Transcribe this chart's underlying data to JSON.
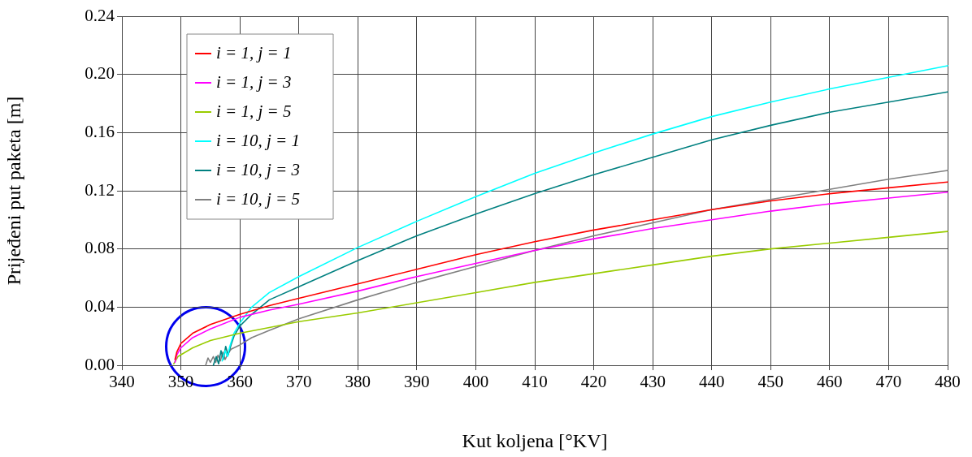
{
  "chart_data": {
    "type": "line",
    "xlabel": "Kut koljena [°KV]",
    "ylabel": "Prijeđeni put paketa [m]",
    "xlim": [
      340,
      480
    ],
    "xticks": [
      340,
      350,
      360,
      370,
      380,
      390,
      400,
      410,
      420,
      430,
      440,
      450,
      460,
      470,
      480
    ],
    "ylim": [
      0,
      0.24
    ],
    "yticks": [
      {
        "value": 0,
        "label": "0.00"
      },
      {
        "value": 0.04,
        "label": "0.04"
      },
      {
        "value": 0.08,
        "label": "0.08"
      },
      {
        "value": 0.12,
        "label": "0.12"
      },
      {
        "value": 0.16,
        "label": "0.16"
      },
      {
        "value": 0.2,
        "label": "0.20"
      },
      {
        "value": 0.24,
        "label": "0.24"
      }
    ],
    "grid": true,
    "legend": "top left",
    "marker": "none",
    "line_style": "solid",
    "series": [
      {
        "name": "i = 1, j = 1",
        "color": "#ff0000",
        "x": [
          349,
          349.3,
          350,
          352,
          355,
          360,
          365,
          370,
          380,
          390,
          400,
          410,
          420,
          430,
          440,
          450,
          460,
          470,
          480
        ],
        "values": [
          0.004,
          0.009,
          0.015,
          0.022,
          0.028,
          0.035,
          0.041,
          0.046,
          0.056,
          0.066,
          0.076,
          0.085,
          0.093,
          0.1,
          0.107,
          0.113,
          0.118,
          0.122,
          0.126
        ]
      },
      {
        "name": "i = 1, j = 3",
        "color": "#ff00ff",
        "x": [
          349,
          349.3,
          350,
          352,
          355,
          360,
          365,
          370,
          380,
          390,
          400,
          410,
          420,
          430,
          440,
          450,
          460,
          470,
          480
        ],
        "values": [
          0.002,
          0.007,
          0.012,
          0.019,
          0.025,
          0.033,
          0.038,
          0.042,
          0.051,
          0.061,
          0.07,
          0.079,
          0.087,
          0.094,
          0.1,
          0.106,
          0.111,
          0.115,
          0.119
        ]
      },
      {
        "name": "i = 1, j = 5",
        "color": "#99cc00",
        "x": [
          348.8,
          349.5,
          352,
          355,
          360,
          365,
          370,
          380,
          390,
          400,
          410,
          420,
          430,
          440,
          450,
          460,
          470,
          480
        ],
        "values": [
          0.001,
          0.006,
          0.012,
          0.017,
          0.022,
          0.026,
          0.03,
          0.036,
          0.043,
          0.05,
          0.057,
          0.063,
          0.069,
          0.075,
          0.08,
          0.084,
          0.088,
          0.092
        ]
      },
      {
        "name": "i = 10, j = 1",
        "color": "#00ffff",
        "x": [
          357,
          357.5,
          357.9,
          358.3,
          359,
          360,
          362,
          365,
          370,
          380,
          390,
          400,
          410,
          420,
          430,
          440,
          450,
          460,
          470,
          480
        ],
        "values": [
          0.003,
          0.01,
          0.006,
          0.013,
          0.022,
          0.029,
          0.04,
          0.05,
          0.061,
          0.081,
          0.099,
          0.116,
          0.132,
          0.146,
          0.159,
          0.171,
          0.181,
          0.19,
          0.198,
          0.206
        ]
      },
      {
        "name": "i = 10, j = 3",
        "color": "#008080",
        "x": [
          355.5,
          356,
          356.4,
          356.8,
          357.2,
          357.6,
          358,
          358.5,
          359,
          360,
          362,
          365,
          370,
          380,
          390,
          400,
          410,
          420,
          430,
          440,
          450,
          460,
          470,
          480
        ],
        "values": [
          0,
          0.006,
          0.001,
          0.01,
          0.004,
          0.013,
          0.007,
          0.014,
          0.02,
          0.027,
          0.035,
          0.045,
          0.054,
          0.072,
          0.089,
          0.104,
          0.118,
          0.131,
          0.143,
          0.155,
          0.165,
          0.174,
          0.181,
          0.188
        ]
      },
      {
        "name": "i = 10, j = 5",
        "color": "#808080",
        "x": [
          354.2,
          354.6,
          355,
          355.5,
          355.9,
          356.3,
          356.7,
          357.1,
          357.5,
          358,
          358.5,
          360,
          362,
          365,
          370,
          380,
          390,
          400,
          410,
          420,
          430,
          440,
          450,
          460,
          470,
          480
        ],
        "values": [
          0,
          0.005,
          0.002,
          0.006,
          0.002,
          0.007,
          0.003,
          0.009,
          0.004,
          0.008,
          0.011,
          0.014,
          0.019,
          0.024,
          0.032,
          0.045,
          0.057,
          0.068,
          0.079,
          0.089,
          0.098,
          0.107,
          0.114,
          0.121,
          0.128,
          0.134
        ]
      }
    ]
  }
}
